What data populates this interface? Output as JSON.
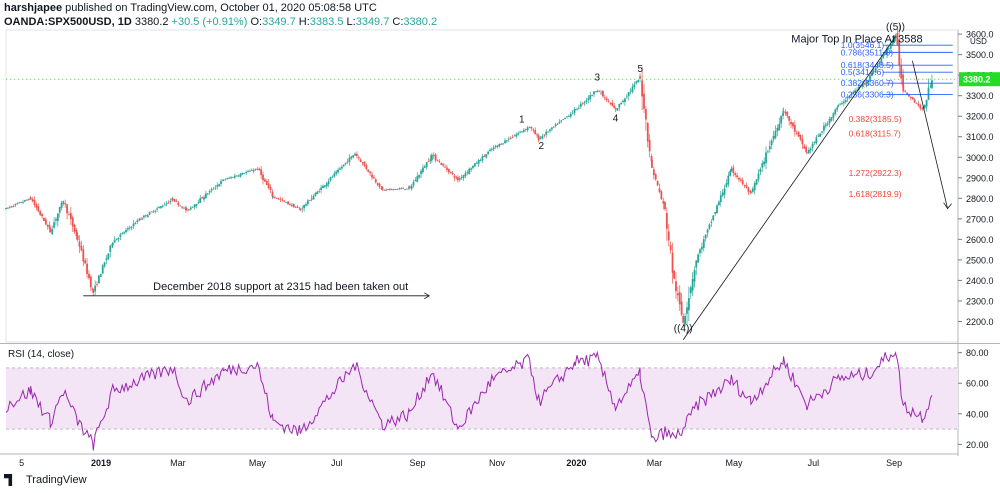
{
  "header": {
    "user": "harshjapee",
    "published": "published on TradingView.com, October 01, 2020 05:08:58 UTC",
    "symbol": "OANDA:SPX500USD, 1D",
    "last": "3380.2",
    "change": "+30.5 (+0.91%)",
    "o_label": "O:",
    "o": "3349.7",
    "h_label": "H:",
    "h": "3383.5",
    "l_label": "L:",
    "l": "3349.7",
    "c_label": "C:",
    "c": "3380.2"
  },
  "footer": {
    "brand": "TradingView"
  },
  "colors": {
    "up": "#26a69a",
    "down": "#ef5350",
    "rsi": "#9c27b0",
    "rsi_band": "#f3e5f5",
    "price_tag": "#22dd22",
    "fib_blue": "#2962ff",
    "fib_red": "#f44336"
  },
  "chart_data": [
    {
      "type": "candlestick",
      "currency_label": "USD",
      "ylim": [
        2100,
        3620
      ],
      "yticks": [
        2200,
        2300,
        2400,
        2500,
        2600,
        2700,
        2800,
        2900,
        3000,
        3100,
        3200,
        3300,
        3400,
        3500,
        3600
      ],
      "ytick_labels": [
        "2200.0",
        "2300.0",
        "2400.0",
        "2500.0",
        "2600.0",
        "2700.0",
        "2800.0",
        "2900.0",
        "3000.0",
        "3100.0",
        "3200.0",
        "3300.0",
        "3400.0",
        "3500.0",
        "3600.0"
      ],
      "x_range": [
        "2018-10-20",
        "2020-10-20"
      ],
      "xticks": [
        {
          "date": "2018-11-01",
          "label": "5"
        },
        {
          "date": "2019-01-01",
          "label": "2019",
          "bold": true
        },
        {
          "date": "2019-03-01",
          "label": "Mar"
        },
        {
          "date": "2019-05-01",
          "label": "May"
        },
        {
          "date": "2019-07-01",
          "label": "Jul"
        },
        {
          "date": "2019-09-01",
          "label": "Sep"
        },
        {
          "date": "2019-11-01",
          "label": "Nov"
        },
        {
          "date": "2020-01-01",
          "label": "2020",
          "bold": true
        },
        {
          "date": "2020-03-01",
          "label": "Mar"
        },
        {
          "date": "2020-05-01",
          "label": "May"
        },
        {
          "date": "2020-07-01",
          "label": "Jul"
        },
        {
          "date": "2020-09-01",
          "label": "Sep"
        }
      ],
      "price_path": [
        [
          "2018-10-20",
          2750
        ],
        [
          "2018-11-08",
          2800
        ],
        [
          "2018-11-23",
          2640
        ],
        [
          "2018-12-03",
          2790
        ],
        [
          "2018-12-14",
          2600
        ],
        [
          "2018-12-26",
          2340
        ],
        [
          "2019-01-10",
          2590
        ],
        [
          "2019-01-31",
          2700
        ],
        [
          "2019-02-25",
          2795
        ],
        [
          "2019-03-08",
          2740
        ],
        [
          "2019-04-05",
          2890
        ],
        [
          "2019-05-01",
          2945
        ],
        [
          "2019-05-13",
          2810
        ],
        [
          "2019-06-03",
          2745
        ],
        [
          "2019-07-15",
          3020
        ],
        [
          "2019-08-05",
          2840
        ],
        [
          "2019-08-26",
          2850
        ],
        [
          "2019-09-12",
          3010
        ],
        [
          "2019-10-02",
          2890
        ],
        [
          "2019-10-28",
          3040
        ],
        [
          "2019-11-26",
          3150
        ],
        [
          "2019-12-03",
          3090
        ],
        [
          "2019-12-31",
          3230
        ],
        [
          "2020-01-17",
          3330
        ],
        [
          "2020-01-31",
          3230
        ],
        [
          "2020-02-19",
          3390
        ],
        [
          "2020-02-28",
          2950
        ],
        [
          "2020-03-09",
          2740
        ],
        [
          "2020-03-16",
          2400
        ],
        [
          "2020-03-23",
          2200
        ],
        [
          "2020-04-02",
          2500
        ],
        [
          "2020-04-29",
          2940
        ],
        [
          "2020-05-14",
          2820
        ],
        [
          "2020-06-08",
          3230
        ],
        [
          "2020-06-26",
          3020
        ],
        [
          "2020-07-20",
          3250
        ],
        [
          "2020-08-12",
          3380
        ],
        [
          "2020-09-02",
          3588
        ],
        [
          "2020-09-08",
          3330
        ],
        [
          "2020-09-23",
          3230
        ],
        [
          "2020-09-30",
          3380
        ]
      ],
      "current_price": 3380.2,
      "wave_labels": [
        {
          "text": "1",
          "date": "2019-11-20",
          "price": 3170
        },
        {
          "text": "2",
          "date": "2019-12-05",
          "price": 3040
        },
        {
          "text": "3",
          "date": "2020-01-17",
          "price": 3375
        },
        {
          "text": "4",
          "date": "2020-01-31",
          "price": 3175
        },
        {
          "text": "5",
          "date": "2020-02-19",
          "price": 3415
        },
        {
          "text": "((5))",
          "date": "2020-09-02",
          "price": 3620
        },
        {
          "text": "((4))",
          "date": "2020-03-23",
          "price": 2150
        }
      ],
      "annotations": {
        "top": "Major Top In Place At 3588",
        "support": "December 2018 support at 2315 had been taken out"
      },
      "support_arrow": {
        "from_date": "2018-12-26",
        "to_date": "2019-09-10",
        "price": 2325
      },
      "trendline": {
        "from": [
          "2020-03-23",
          2150
        ],
        "to": [
          "2020-09-02",
          3588
        ]
      },
      "projection_arrow": {
        "from": [
          "2020-09-15",
          3470
        ],
        "to": [
          "2020-10-12",
          2750
        ]
      },
      "fib_retracements": [
        {
          "label": "1.0(3546.1)",
          "price": 3546.1,
          "color": "blue"
        },
        {
          "label": "0.786(3511.0)",
          "price": 3511.0,
          "color": "blue"
        },
        {
          "label": "0.618(3448.5)",
          "price": 3448.5,
          "color": "blue"
        },
        {
          "label": "0.5(3414.6)",
          "price": 3414.6,
          "color": "blue"
        },
        {
          "label": "0.382(3360.7)",
          "price": 3360.7,
          "color": "blue"
        },
        {
          "label": "0.236(3306.3)",
          "price": 3306.3,
          "color": "blue"
        }
      ],
      "fib_extensions": [
        {
          "label": "0.382(3185.5)",
          "price": 3185.5,
          "color": "red"
        },
        {
          "label": "0.618(3115.7)",
          "price": 3115.7,
          "color": "red"
        },
        {
          "label": "1.272(2922.3)",
          "price": 2922.3,
          "color": "red"
        },
        {
          "label": "1.618(2819.9)",
          "price": 2819.9,
          "color": "red"
        }
      ]
    },
    {
      "type": "line",
      "title": "RSI (14, close)",
      "ylim": [
        15,
        85
      ],
      "yticks": [
        20,
        40,
        60,
        80
      ],
      "ytick_labels": [
        "20.00",
        "40.00",
        "60.00",
        "80.00"
      ],
      "band": [
        30,
        70
      ],
      "rsi_path": [
        [
          "2018-10-20",
          45
        ],
        [
          "2018-11-08",
          55
        ],
        [
          "2018-11-23",
          35
        ],
        [
          "2018-12-03",
          55
        ],
        [
          "2018-12-14",
          35
        ],
        [
          "2018-12-26",
          20
        ],
        [
          "2019-01-10",
          55
        ],
        [
          "2019-01-31",
          62
        ],
        [
          "2019-02-25",
          70
        ],
        [
          "2019-03-08",
          48
        ],
        [
          "2019-04-05",
          68
        ],
        [
          "2019-05-01",
          72
        ],
        [
          "2019-05-13",
          35
        ],
        [
          "2019-06-03",
          28
        ],
        [
          "2019-07-15",
          72
        ],
        [
          "2019-08-05",
          33
        ],
        [
          "2019-08-26",
          40
        ],
        [
          "2019-09-12",
          68
        ],
        [
          "2019-10-02",
          30
        ],
        [
          "2019-10-28",
          62
        ],
        [
          "2019-11-26",
          75
        ],
        [
          "2019-12-03",
          48
        ],
        [
          "2019-12-31",
          74
        ],
        [
          "2020-01-17",
          76
        ],
        [
          "2020-01-31",
          45
        ],
        [
          "2020-02-19",
          66
        ],
        [
          "2020-02-28",
          22
        ],
        [
          "2020-03-09",
          28
        ],
        [
          "2020-03-16",
          24
        ],
        [
          "2020-03-23",
          30
        ],
        [
          "2020-04-02",
          45
        ],
        [
          "2020-04-29",
          62
        ],
        [
          "2020-05-14",
          48
        ],
        [
          "2020-06-08",
          75
        ],
        [
          "2020-06-26",
          46
        ],
        [
          "2020-07-20",
          63
        ],
        [
          "2020-08-12",
          66
        ],
        [
          "2020-09-02",
          82
        ],
        [
          "2020-09-08",
          45
        ],
        [
          "2020-09-23",
          38
        ],
        [
          "2020-09-30",
          52
        ]
      ]
    }
  ]
}
